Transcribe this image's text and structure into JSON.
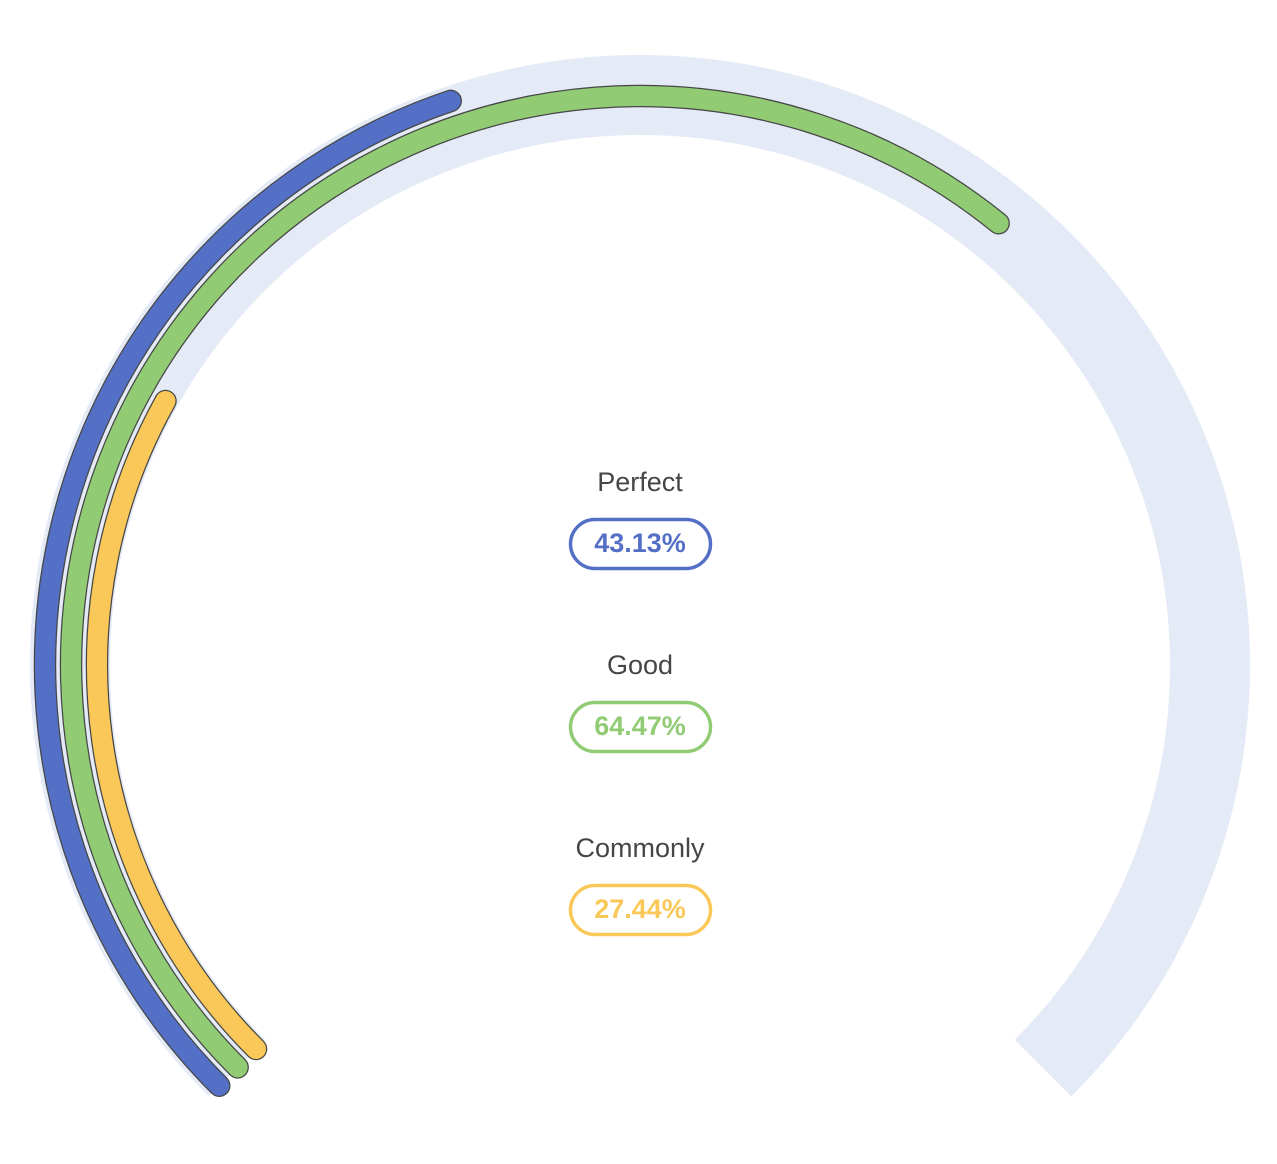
{
  "chart_data": {
    "type": "radial-gauge",
    "scale": {
      "min": 0,
      "max": 100,
      "unit": "%"
    },
    "track_color": "#e4eaf6",
    "outline_color": "#464646",
    "series": [
      {
        "name": "Perfect",
        "value": 43.13,
        "label": "43.13%",
        "color": "#5470c6"
      },
      {
        "name": "Good",
        "value": 64.47,
        "label": "64.47%",
        "color": "#91cc75"
      },
      {
        "name": "Commonly",
        "value": 27.44,
        "label": "27.44%",
        "color": "#fac858"
      }
    ]
  }
}
